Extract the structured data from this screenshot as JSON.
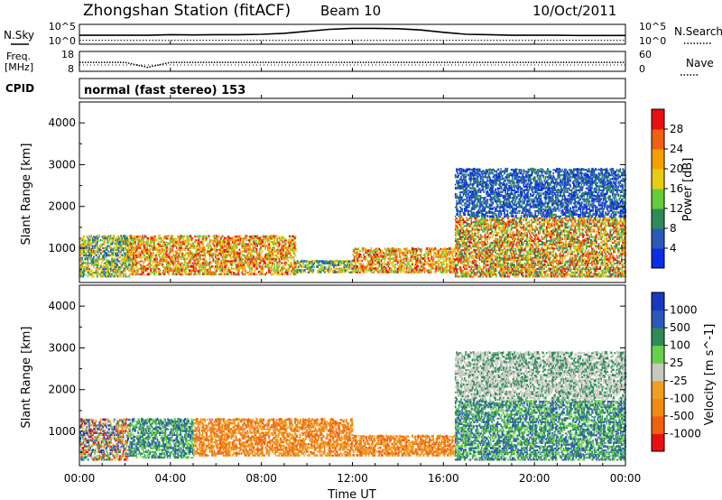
{
  "header": {
    "title": "Zhongshan Station (fitACF)",
    "beam": "Beam 10",
    "date": "10/Oct/2011"
  },
  "summary_panel": {
    "left_top_label": "N.Sky",
    "left_top_ticks": [
      "10^5",
      "10^0"
    ],
    "right_top_label": "N.Search",
    "right_top_ticks": [
      "10^5",
      "10^0"
    ],
    "freq_label_line1": "Freq.",
    "freq_label_line2": "[MHz]",
    "freq_ticks": [
      "18",
      "8"
    ],
    "nave_label": "Nave",
    "nave_ticks": [
      "60",
      "0"
    ],
    "cpid_label": "CPID",
    "cpid_text": "normal (fast stereo) 153"
  },
  "chart_data": [
    {
      "type": "heatmap",
      "title": "",
      "ylabel": "Slant Range [km]",
      "yticks": [
        "1000",
        "2000",
        "3000",
        "4000"
      ],
      "ylim": [
        180,
        4500
      ],
      "xlim_hours": [
        0,
        24
      ],
      "colorbar": {
        "label": "Power [dB]",
        "ticks": [
          "4",
          "8",
          "12",
          "16",
          "20",
          "24",
          "28"
        ],
        "range": [
          0,
          32
        ],
        "colors": [
          "#0a2ee8",
          "#2a5ab8",
          "#2e8b57",
          "#66cd3a",
          "#e8cc10",
          "#f5a000",
          "#f06010",
          "#e81010"
        ]
      },
      "regions": [
        {
          "t0": 0.0,
          "t1": 2.2,
          "r0": 300,
          "r1": 1300,
          "level": "mid"
        },
        {
          "t0": 2.2,
          "t1": 9.5,
          "r0": 350,
          "r1": 1300,
          "level": "high"
        },
        {
          "t0": 9.5,
          "t1": 12.0,
          "r0": 400,
          "r1": 700,
          "level": "mid"
        },
        {
          "t0": 12.0,
          "t1": 16.5,
          "r0": 400,
          "r1": 1000,
          "level": "high"
        },
        {
          "t0": 16.5,
          "t1": 24.0,
          "r0": 300,
          "r1": 2900,
          "level": "mixed"
        }
      ]
    },
    {
      "type": "heatmap",
      "title": "",
      "ylabel": "Slant Range [km]",
      "yticks": [
        "1000",
        "2000",
        "3000",
        "4000"
      ],
      "ylim": [
        180,
        4500
      ],
      "xlim_hours": [
        0,
        24
      ],
      "xticks": [
        "00:00",
        "04:00",
        "08:00",
        "12:00",
        "16:00",
        "20:00",
        "00:00"
      ],
      "xlabel": "Time UT",
      "colorbar": {
        "label": "Velocity [m s^-1]",
        "ticks": [
          "1000",
          "500",
          "100",
          "25",
          "-25",
          "-100",
          "-500",
          "-1000"
        ],
        "range": [
          -1200,
          1200
        ],
        "colors": [
          "#e81010",
          "#f06010",
          "#f08a10",
          "#f0a020",
          "#c8c8c0",
          "#6ad04a",
          "#2e8b57",
          "#2a5ab8",
          "#1838c0"
        ]
      },
      "regions": [
        {
          "t0": 0.0,
          "t1": 2.2,
          "r0": 300,
          "r1": 1300,
          "level": "mixed"
        },
        {
          "t0": 2.2,
          "t1": 5.0,
          "r0": 350,
          "r1": 1300,
          "level": "positive"
        },
        {
          "t0": 5.0,
          "t1": 12.0,
          "r0": 400,
          "r1": 1300,
          "level": "negative"
        },
        {
          "t0": 12.0,
          "t1": 16.5,
          "r0": 400,
          "r1": 900,
          "level": "negative"
        },
        {
          "t0": 16.5,
          "t1": 24.0,
          "r0": 300,
          "r1": 2900,
          "level": "positive"
        }
      ]
    }
  ],
  "summary_series": {
    "nsky_upper": [
      0.55,
      0.55,
      0.55,
      0.55,
      0.52,
      0.53,
      0.52,
      0.52,
      0.5,
      0.45,
      0.35,
      0.25,
      0.2,
      0.2,
      0.22,
      0.28,
      0.4,
      0.5,
      0.52,
      0.55,
      0.55,
      0.55,
      0.56,
      0.56,
      0.56
    ],
    "nsearch_dotted": [
      0.8,
      0.8,
      0.8,
      0.8,
      0.8,
      0.8,
      0.8,
      0.8,
      0.8,
      0.8,
      0.8,
      0.8,
      0.8,
      0.8,
      0.8,
      0.8,
      0.8,
      0.8,
      0.8,
      0.8,
      0.8,
      0.8,
      0.8,
      0.8,
      0.8
    ],
    "freq": [
      0.55,
      0.55,
      0.55,
      0.8,
      0.55,
      0.55,
      0.55,
      0.55,
      0.55,
      0.55,
      0.55,
      0.55,
      0.55,
      0.55,
      0.55,
      0.55,
      0.55,
      0.55,
      0.55,
      0.55,
      0.55,
      0.55,
      0.55,
      0.55,
      0.55
    ],
    "nave": [
      0.68,
      0.68,
      0.68,
      0.68,
      0.68,
      0.68,
      0.68,
      0.68,
      0.68,
      0.68,
      0.68,
      0.68,
      0.68,
      0.68,
      0.68,
      0.68,
      0.68,
      0.68,
      0.68,
      0.68,
      0.68,
      0.68,
      0.68,
      0.68,
      0.68
    ]
  }
}
